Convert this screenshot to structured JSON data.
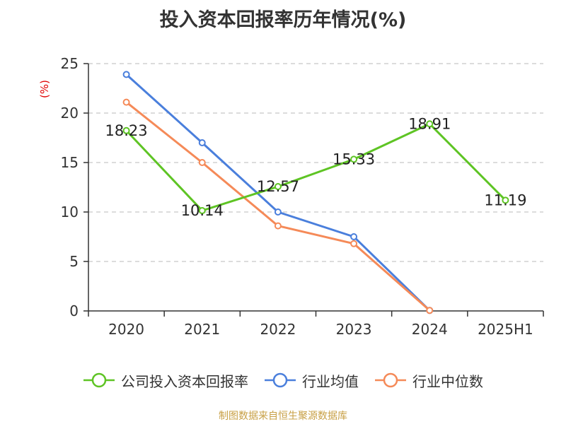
{
  "chart_data": {
    "type": "line",
    "title": "投入资本回报率历年情况(%)",
    "ylabel": "(%)",
    "categories": [
      "2020",
      "2021",
      "2022",
      "2023",
      "2024",
      "2025H1"
    ],
    "ylim": [
      0,
      25
    ],
    "yticks": [
      0,
      5,
      10,
      15,
      20,
      25
    ],
    "grid": true,
    "legend_position": "bottom",
    "series": [
      {
        "name": "公司投入资本回报率",
        "color": "#5ec424",
        "values": [
          18.23,
          10.14,
          12.57,
          15.33,
          18.91,
          11.19
        ],
        "show_labels": true
      },
      {
        "name": "行业均值",
        "color": "#4a7fdc",
        "values": [
          23.9,
          17.0,
          10.0,
          7.5,
          0.05,
          null
        ],
        "show_labels": false
      },
      {
        "name": "行业中位数",
        "color": "#f58a58",
        "values": [
          21.1,
          15.0,
          8.6,
          6.8,
          0.05,
          null
        ],
        "show_labels": false
      }
    ]
  },
  "source": "制图数据来自恒生聚源数据库"
}
